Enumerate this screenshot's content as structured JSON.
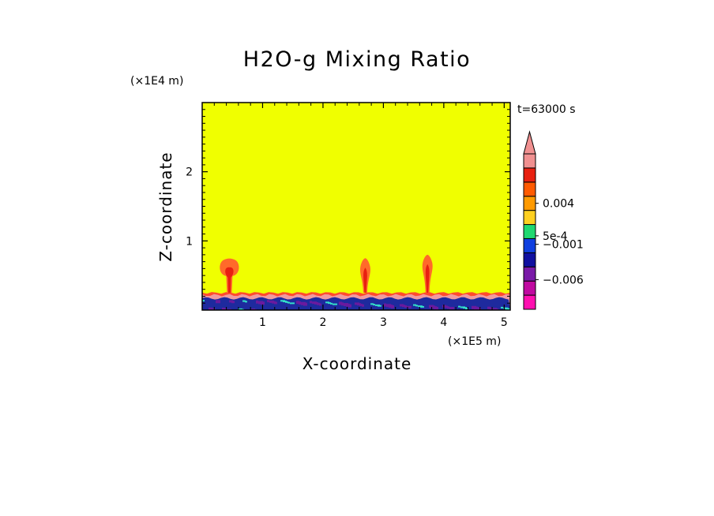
{
  "chart_data": {
    "type": "heatmap",
    "title": "H2O-g Mixing Ratio",
    "xlabel": "X-coordinate",
    "ylabel": "Z-coordinate",
    "x_scale_label": "(×1E5 m)",
    "y_scale_label": "(×1E4 m)",
    "time_label": "t=63000 s",
    "xlim": [
      0,
      5.1
    ],
    "ylim": [
      0,
      3.0
    ],
    "x_ticks": [
      "1",
      "2",
      "3",
      "4",
      "5"
    ],
    "y_ticks": [
      "1",
      "2"
    ],
    "x_tick_values": [
      1,
      2,
      3,
      4,
      5
    ],
    "y_tick_values": [
      1,
      2
    ],
    "background_color": "#f0ff00",
    "surface_band": {
      "top_z": 0.25,
      "dark_top_z": 0.17,
      "colors": [
        "#ff4a2e",
        "#f09aa0",
        "#1e2a9e",
        "#6a1a9e",
        "#33e0c8"
      ]
    },
    "plumes": [
      {
        "x": 0.45,
        "top_z": 0.72,
        "shape": "mushroom"
      },
      {
        "x": 2.7,
        "top_z": 0.75,
        "shape": "column"
      },
      {
        "x": 3.73,
        "top_z": 0.8,
        "shape": "column"
      }
    ],
    "colorbar": {
      "colors": [
        "#ff10b0",
        "#c00aa0",
        "#7a1aa8",
        "#1010a0",
        "#1040e0",
        "#20d870",
        "#ffd020",
        "#ff9a00",
        "#ff5a00",
        "#e82010",
        "#f09090"
      ],
      "labels": [
        {
          "text": "0.004",
          "level": 7.5
        },
        {
          "text": "5e-4",
          "level": 5.2
        },
        {
          "text": "−0.001",
          "level": 4.6
        },
        {
          "text": "−0.006",
          "level": 2.1
        }
      ],
      "extend": "max"
    }
  }
}
